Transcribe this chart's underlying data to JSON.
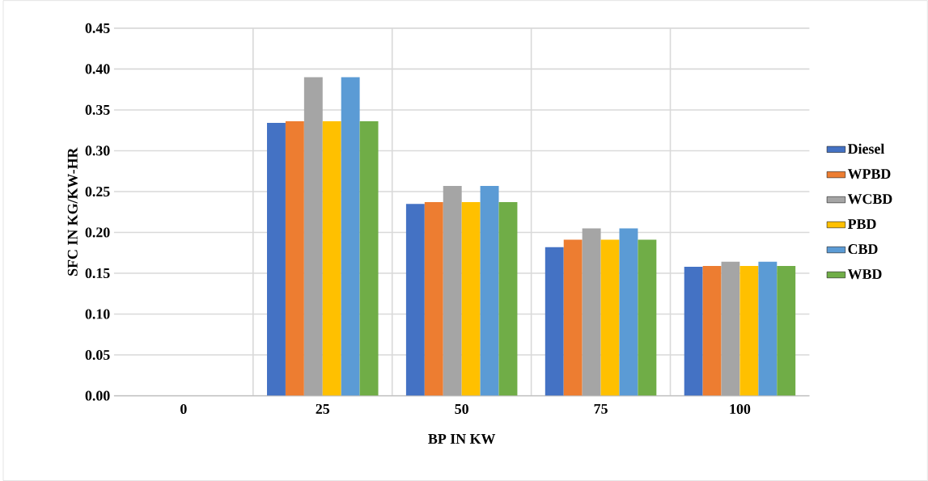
{
  "chart_data": {
    "type": "bar",
    "xlabel": "BP IN KW",
    "ylabel": "SFC IN KG/KW-HR",
    "categories": [
      "0",
      "25",
      "50",
      "75",
      "100"
    ],
    "series": [
      {
        "name": "Diesel",
        "color": "#4472c4",
        "values": [
          0,
          0.334,
          0.235,
          0.182,
          0.158
        ]
      },
      {
        "name": "WPBD",
        "color": "#ed7d31",
        "values": [
          0,
          0.336,
          0.237,
          0.191,
          0.159
        ]
      },
      {
        "name": "WCBD",
        "color": "#a5a5a5",
        "values": [
          0,
          0.39,
          0.257,
          0.205,
          0.164
        ]
      },
      {
        "name": "PBD",
        "color": "#ffc000",
        "values": [
          0,
          0.336,
          0.237,
          0.191,
          0.159
        ]
      },
      {
        "name": "CBD",
        "color": "#5b9bd5",
        "values": [
          0,
          0.39,
          0.257,
          0.205,
          0.164
        ]
      },
      {
        "name": "WBD",
        "color": "#70ad47",
        "values": [
          0,
          0.336,
          0.237,
          0.191,
          0.159
        ]
      }
    ],
    "ylim": [
      0,
      0.45
    ],
    "yticks": [
      {
        "value": 0,
        "label": "0.00"
      },
      {
        "value": 0.05,
        "label": "0.05"
      },
      {
        "value": 0.1,
        "label": "0.10"
      },
      {
        "value": 0.15,
        "label": "0.15"
      },
      {
        "value": 0.2,
        "label": "0.20"
      },
      {
        "value": 0.25,
        "label": "0.25"
      },
      {
        "value": 0.3,
        "label": "0.30"
      },
      {
        "value": 0.35,
        "label": "0.35"
      },
      {
        "value": 0.4,
        "label": "0.40"
      },
      {
        "value": 0.45,
        "label": "0.45"
      }
    ],
    "grid": true,
    "legend": "right"
  }
}
